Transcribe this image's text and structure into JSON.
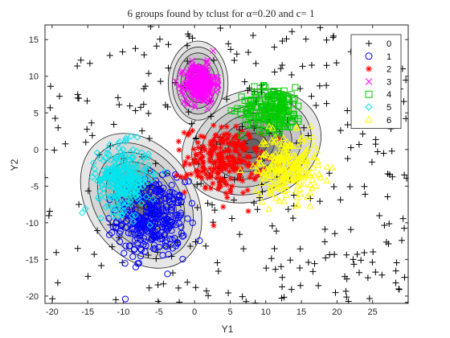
{
  "chart_data": {
    "type": "scatter",
    "title": "6 groups found by tclust for α=0.20 and c= 1",
    "xlabel": "Y1",
    "ylabel": "Y2",
    "xlim": [
      -21,
      30
    ],
    "ylim": [
      -21,
      17
    ],
    "xticks": [
      -20,
      -15,
      -10,
      -5,
      0,
      5,
      10,
      15,
      20,
      25
    ],
    "yticks": [
      -20,
      -15,
      -10,
      -5,
      0,
      5,
      10,
      15
    ],
    "legend_position": "top-right",
    "series": [
      {
        "name": "0",
        "marker": "plus",
        "color": "#000000",
        "center": [
          0,
          0
        ],
        "spread": [
          0,
          0
        ],
        "count": 320
      },
      {
        "name": "1",
        "marker": "circle",
        "color": "#0000ff",
        "center": [
          -6,
          -9.5
        ],
        "spread": [
          2.4,
          2.6
        ],
        "count": 320
      },
      {
        "name": "2",
        "marker": "asterisk",
        "color": "#ff0000",
        "center": [
          4,
          -1.5
        ],
        "spread": [
          2.6,
          2.3
        ],
        "count": 230
      },
      {
        "name": "3",
        "marker": "x",
        "color": "#ff00ff",
        "center": [
          0.8,
          9
        ],
        "spread": [
          1.1,
          1.3
        ],
        "count": 300
      },
      {
        "name": "4",
        "marker": "square",
        "color": "#00cc00",
        "center": [
          11,
          5.5
        ],
        "spread": [
          2.2,
          1.5
        ],
        "count": 200
      },
      {
        "name": "5",
        "marker": "diamond",
        "color": "#00e5ee",
        "center": [
          -10,
          -4
        ],
        "spread": [
          1.8,
          2.2
        ],
        "count": 300
      },
      {
        "name": "6",
        "marker": "triangle",
        "color": "#ffff00",
        "center": [
          13,
          -2.3
        ],
        "spread": [
          2.2,
          2.2
        ],
        "count": 240
      }
    ],
    "contours": [
      {
        "center": [
          -7.5,
          -7
        ],
        "radii": [
          7.5,
          10
        ],
        "angle": -35
      },
      {
        "center": [
          0.5,
          9
        ],
        "radii": [
          4.2,
          5.8
        ],
        "angle": 0
      },
      {
        "center": [
          8,
          0.5
        ],
        "radii": [
          10,
          7.5
        ],
        "angle": -20
      }
    ]
  }
}
